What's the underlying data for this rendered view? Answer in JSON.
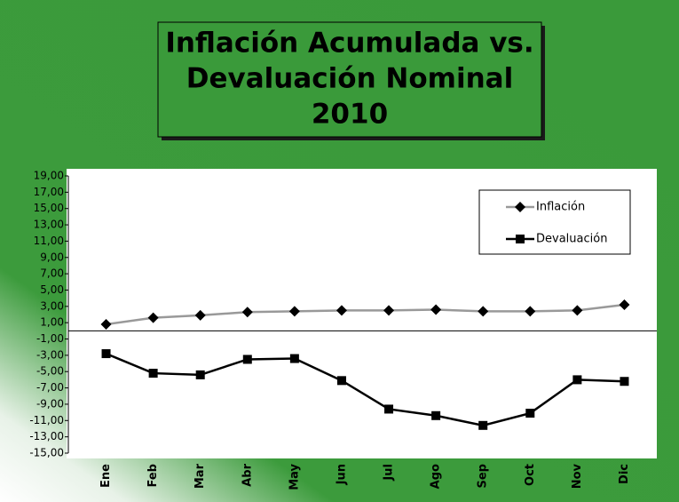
{
  "chart_data": {
    "type": "line",
    "title": [
      "Inflación Acumulada vs.",
      "Devaluación Nominal",
      "2010"
    ],
    "categories": [
      "Ene",
      "Feb",
      "Mar",
      "Abr",
      "May",
      "Jun",
      "Jul",
      "Ago",
      "Sep",
      "Oct",
      "Nov",
      "Dic"
    ],
    "series": [
      {
        "name": "Inflación",
        "color": "#999999",
        "marker": "diamond",
        "values": [
          0.8,
          1.6,
          1.9,
          2.3,
          2.4,
          2.5,
          2.5,
          2.6,
          2.4,
          2.4,
          2.5,
          3.2
        ]
      },
      {
        "name": "Devaluación",
        "color": "#000000",
        "marker": "square",
        "values": [
          -2.8,
          -5.2,
          -5.4,
          -3.5,
          -3.4,
          -6.1,
          -9.6,
          -10.4,
          -11.6,
          -10.1,
          -6.0,
          -6.2
        ]
      }
    ],
    "ylim": [
      -15,
      19
    ],
    "yticks": [
      {
        "value": 19,
        "label": "19,00"
      },
      {
        "value": 17,
        "label": "17,00"
      },
      {
        "value": 15,
        "label": "15,00"
      },
      {
        "value": 13,
        "label": "13,00"
      },
      {
        "value": 11,
        "label": "11,00"
      },
      {
        "value": 9,
        "label": "9,00"
      },
      {
        "value": 7,
        "label": "7,00"
      },
      {
        "value": 5,
        "label": "5,00"
      },
      {
        "value": 3,
        "label": "3,00"
      },
      {
        "value": 1,
        "label": "1,00"
      },
      {
        "value": -1,
        "label": "-1,00"
      },
      {
        "value": -3,
        "label": "-3,00"
      },
      {
        "value": -5,
        "label": "-5,00"
      },
      {
        "value": -7,
        "label": "-7,00"
      },
      {
        "value": -9,
        "label": "-9,00"
      },
      {
        "value": -11,
        "label": "-11,00"
      },
      {
        "value": -13,
        "label": "-13,00"
      },
      {
        "value": -15,
        "label": "-15,00"
      }
    ],
    "grid": false,
    "legend": "top-right"
  }
}
